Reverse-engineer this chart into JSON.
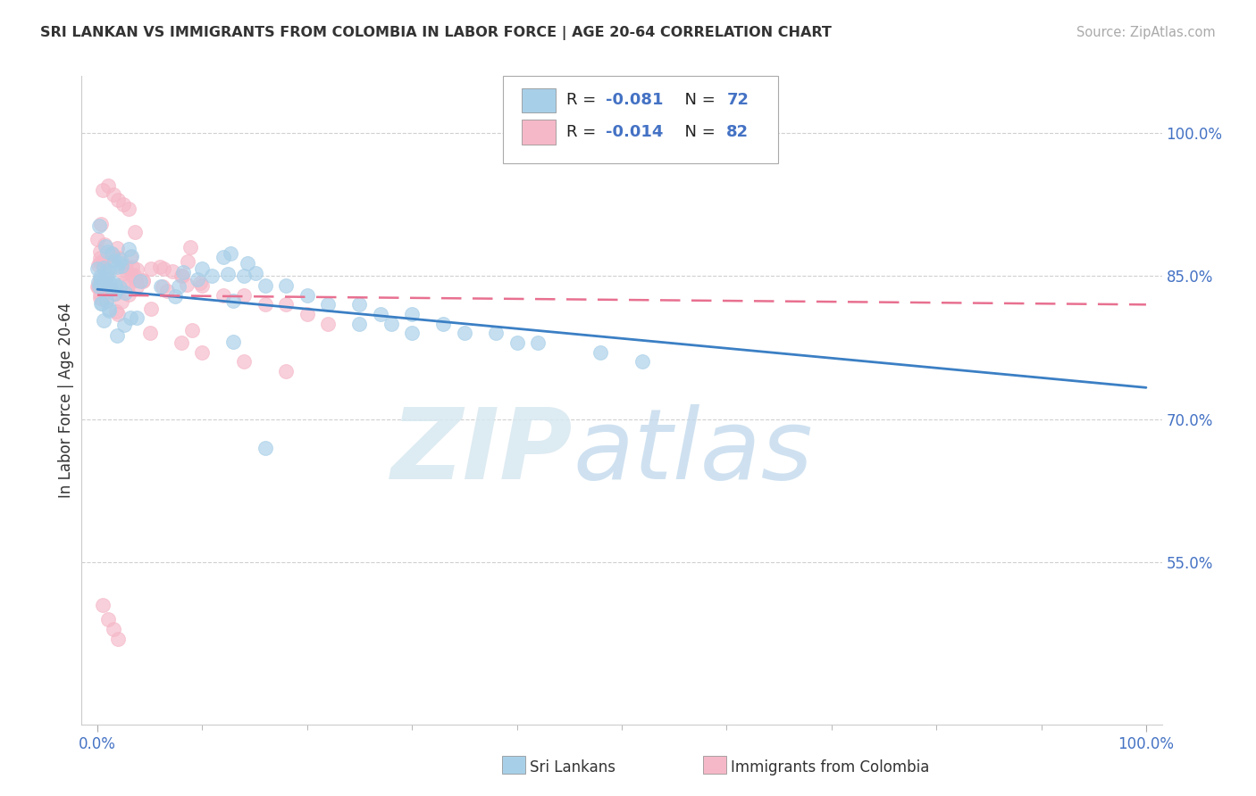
{
  "title": "SRI LANKAN VS IMMIGRANTS FROM COLOMBIA IN LABOR FORCE | AGE 20-64 CORRELATION CHART",
  "source": "Source: ZipAtlas.com",
  "ylabel": "In Labor Force | Age 20-64",
  "xlim": [
    -0.015,
    1.015
  ],
  "ylim": [
    0.38,
    1.06
  ],
  "yticks": [
    0.55,
    0.7,
    0.85,
    1.0
  ],
  "ytick_labels": [
    "55.0%",
    "70.0%",
    "85.0%",
    "100.0%"
  ],
  "xtick_labels": [
    "0.0%",
    "100.0%"
  ],
  "legend_blue_R": "-0.081",
  "legend_blue_N": "72",
  "legend_pink_R": "-0.014",
  "legend_pink_N": "82",
  "legend_blue_label": "Sri Lankans",
  "legend_pink_label": "Immigrants from Colombia",
  "blue_color": "#a8cfe8",
  "pink_color": "#f5b8c8",
  "blue_fill": "#a8cfe8",
  "pink_fill": "#f5b8c8",
  "trendline_blue_color": "#3b7fc4",
  "trendline_pink_color": "#e87090",
  "blue_trend_y0": 0.836,
  "blue_trend_y1": 0.733,
  "pink_trend_y0": 0.83,
  "pink_trend_y1": 0.82,
  "axis_tick_color": "#4472c4",
  "text_color": "#333333",
  "grid_color": "#d0d0d0",
  "marker_size": 130,
  "marker_alpha": 0.65,
  "title_fontsize": 11.5,
  "tick_fontsize": 12,
  "label_fontsize": 12
}
